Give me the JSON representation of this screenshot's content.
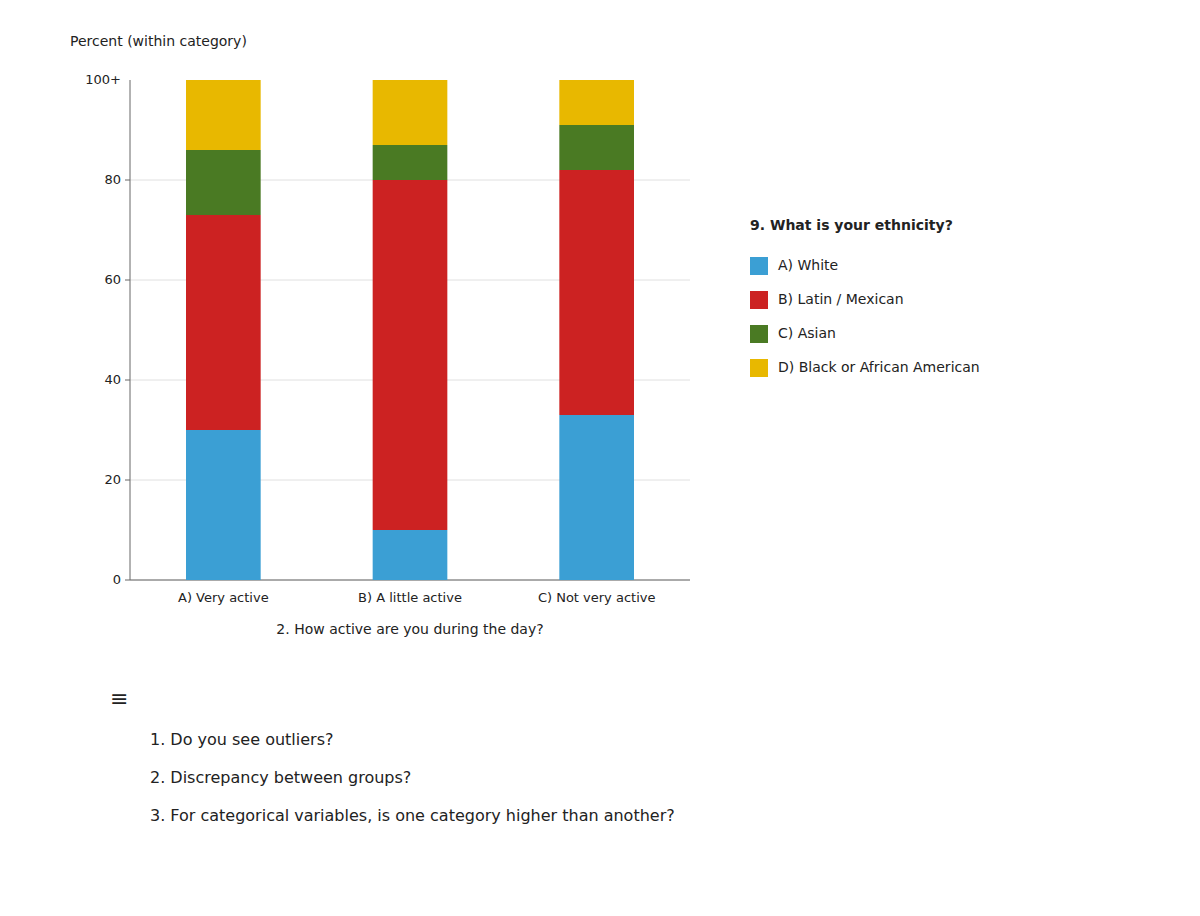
{
  "chart_data": {
    "type": "bar",
    "stacked": true,
    "ylabel": "Percent (within category)",
    "xlabel": "2. How active are you during the day?",
    "categories": [
      "A) Very active",
      "B) A little active",
      "C) Not very active"
    ],
    "series": [
      {
        "name": "A) White",
        "color": "#3B9FD4",
        "values": [
          30,
          10,
          33
        ]
      },
      {
        "name": "B) Latin / Mexican",
        "color": "#CC2222",
        "values": [
          43,
          70,
          49
        ]
      },
      {
        "name": "C) Asian",
        "color": "#4A7A23",
        "values": [
          13,
          7,
          9
        ]
      },
      {
        "name": "D) Black or African American",
        "color": "#E8B800",
        "values": [
          14,
          13,
          9
        ]
      }
    ],
    "legend_title": "9. What is your ethnicity?",
    "legend": "right",
    "ylim": [
      0,
      100
    ],
    "yticks": [
      0,
      20,
      40,
      60,
      80
    ],
    "grid": true,
    "annotations": [
      "100+",
      "≡",
      "1.   Do you see outliers?",
      "2.   Discrepancy between groups?",
      "3.   For categorical variables, is one category higher than another?"
    ]
  }
}
